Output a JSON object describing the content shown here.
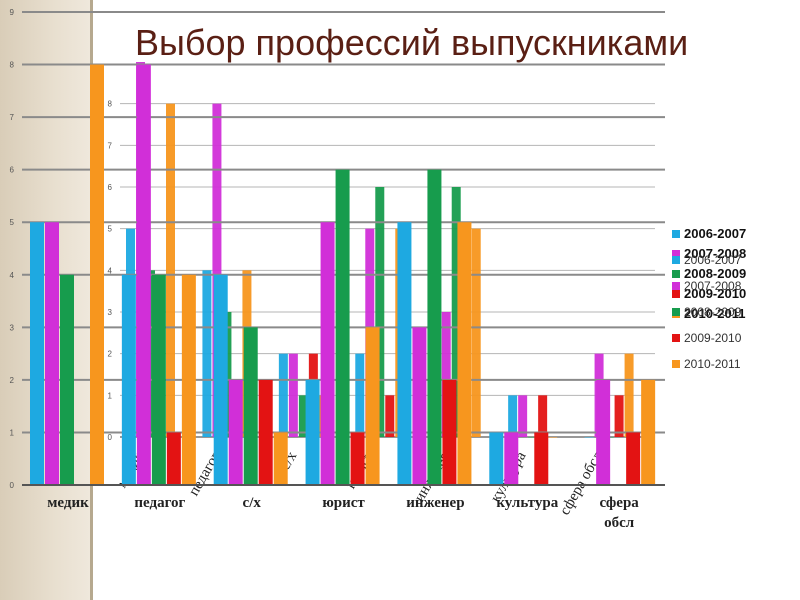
{
  "title": "Выбор профессий выпускниками",
  "colors": {
    "series": [
      "#1ea9e1",
      "#d12fd8",
      "#179c4d",
      "#e31313",
      "#f7961e"
    ]
  },
  "chart_data": [
    {
      "type": "bar",
      "title": "",
      "xlabel": "",
      "ylabel": "",
      "ylim": [
        0,
        9
      ],
      "y_ticks": [
        "0",
        "1",
        "2",
        "3",
        "4",
        "5",
        "6",
        "7",
        "8",
        "9"
      ],
      "grid": true,
      "legend": "right",
      "categories": [
        "медик",
        "педагог",
        "с/х",
        "юрист",
        "инженер",
        "культура",
        "сфера обсл"
      ],
      "series": [
        {
          "name": "2006-2007",
          "values": [
            5,
            4,
            4,
            2,
            5,
            1,
            0
          ]
        },
        {
          "name": "2007-2008",
          "values": [
            5,
            8,
            2,
            5,
            3,
            1,
            2
          ]
        },
        {
          "name": "2008-2009",
          "values": [
            4,
            4,
            3,
            6,
            6,
            0,
            0
          ]
        },
        {
          "name": "2009-2010",
          "values": [
            0,
            1,
            2,
            1,
            2,
            1,
            1
          ]
        },
        {
          "name": "2010-2011",
          "values": [
            8,
            4,
            1,
            3,
            5,
            0,
            2
          ]
        }
      ]
    },
    {
      "type": "bar",
      "title": "",
      "xlabel": "",
      "ylabel": "",
      "ylim": [
        0,
        9
      ],
      "y_ticks": [
        "0",
        "1",
        "2",
        "3",
        "4",
        "5",
        "6",
        "7",
        "8"
      ],
      "grid": true,
      "legend": "right",
      "categories": [
        "медик",
        "педагог",
        "с/х",
        "юрист",
        "инженер",
        "культура",
        "сфера обсл"
      ],
      "series": [
        {
          "name": "2006-2007",
          "values": [
            5,
            4,
            2,
            2,
            5,
            1,
            0
          ]
        },
        {
          "name": "2007-2008",
          "values": [
            9,
            8,
            2,
            5,
            3,
            1,
            2
          ]
        },
        {
          "name": "2008-2009",
          "values": [
            4,
            3,
            1,
            6,
            6,
            0,
            0
          ]
        },
        {
          "name": "2009-2010",
          "values": [
            0,
            1,
            2,
            1,
            2,
            1,
            1
          ]
        },
        {
          "name": "2010-2011",
          "values": [
            8,
            4,
            1,
            5,
            5,
            0,
            2
          ]
        }
      ]
    }
  ]
}
